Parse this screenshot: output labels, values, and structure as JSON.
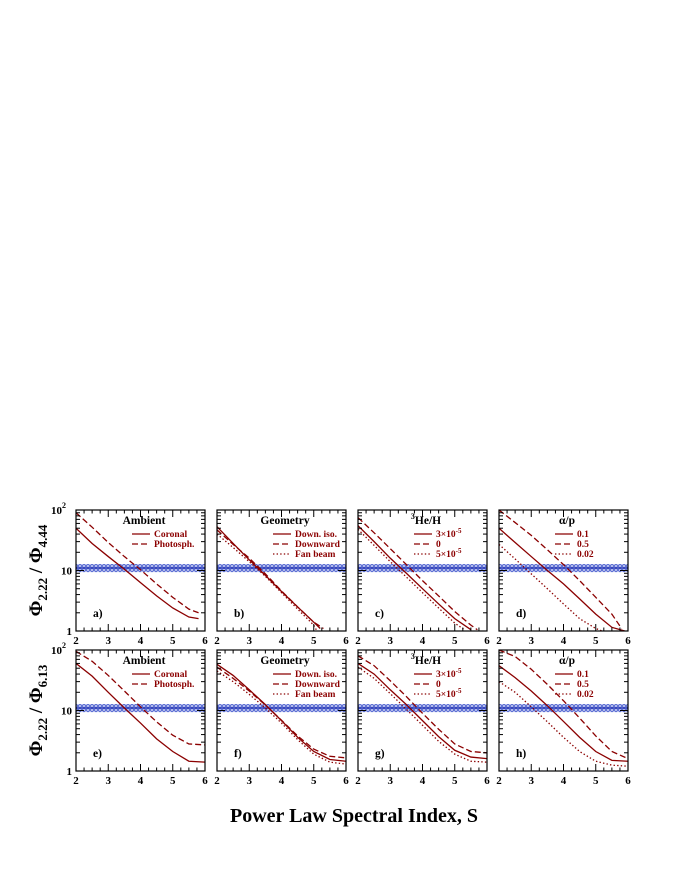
{
  "colors": {
    "curve": "#8b0000",
    "band": "#4a5fd0",
    "band_center": "#1f2fb0",
    "axis": "#000000"
  },
  "chart_data": {
    "type": "line",
    "xlabel": "Power Law Spectral Index, S",
    "x_ticks": [
      "2",
      "3",
      "4",
      "5",
      "6"
    ],
    "xlim": [
      2,
      6
    ],
    "ylim": [
      1,
      100
    ],
    "y_scale": "log",
    "y_ticks": [
      "1",
      "10",
      "10"
    ],
    "y_tick_superscript": "2",
    "observed_band": {
      "center": 11,
      "low": 9.4,
      "high": 12.8
    },
    "rows": [
      {
        "ylabel": {
          "main": "Φ",
          "sub1": "2.22",
          "sep": " / Φ",
          "sub2": "4.44"
        },
        "panels": [
          {
            "letter": "a)",
            "title": {
              "pre": "",
              "sup": "",
              "main": "Ambient"
            },
            "series": [
              {
                "name": "Coronal",
                "style": "solid",
                "x": [
                  2,
                  2.5,
                  3,
                  3.5,
                  4,
                  4.5,
                  5,
                  5.5,
                  5.8
                ],
                "y": [
                  50,
                  28,
                  17,
                  10.5,
                  6.3,
                  3.8,
                  2.4,
                  1.7,
                  1.6
                ]
              },
              {
                "name": "Photosph.",
                "style": "dashed",
                "x": [
                  2,
                  2.5,
                  3,
                  3.5,
                  4,
                  4.5,
                  5,
                  5.5,
                  5.8
                ],
                "y": [
                  90,
                  52,
                  29,
                  17,
                  10.3,
                  6,
                  3.6,
                  2.3,
                  2
                ]
              }
            ]
          },
          {
            "letter": "b)",
            "title": {
              "pre": "",
              "sup": "",
              "main": "Geometry"
            },
            "series": [
              {
                "name": "Down. iso.",
                "style": "solid",
                "x": [
                  2,
                  2.5,
                  3,
                  3.5,
                  4,
                  4.5,
                  5,
                  5.2
                ],
                "y": [
                  53,
                  28,
                  15,
                  8.3,
                  4.5,
                  2.5,
                  1.4,
                  1.1
                ]
              },
              {
                "name": "Downward",
                "style": "dashed",
                "x": [
                  2,
                  2.5,
                  3,
                  3.5,
                  4,
                  4.5,
                  5,
                  5.3
                ],
                "y": [
                  47,
                  27,
                  16,
                  8.8,
                  4.6,
                  2.5,
                  1.4,
                  1.1
                ]
              },
              {
                "name": "Fan beam",
                "style": "dotted",
                "x": [
                  2,
                  2.5,
                  3,
                  3.5,
                  4,
                  4.5,
                  5,
                  5.1
                ],
                "y": [
                  40,
                  24,
                  14,
                  8,
                  4.3,
                  2.3,
                  1.25,
                  1
                ]
              }
            ]
          },
          {
            "letter": "c)",
            "title": {
              "pre": "",
              "sup": "3",
              "main": "He/H"
            },
            "series": [
              {
                "name": "3×10-5",
                "label": {
                  "base": "3×10",
                  "sup": "-5"
                },
                "style": "solid",
                "x": [
                  2,
                  2.5,
                  3,
                  3.5,
                  4,
                  4.5,
                  5,
                  5.5
                ],
                "y": [
                  55,
                  30,
                  16,
                  9,
                  5,
                  2.8,
                  1.6,
                  1.05
                ]
              },
              {
                "name": "0",
                "label": {
                  "base": "0",
                  "sup": ""
                },
                "style": "dashed",
                "x": [
                  2,
                  2.5,
                  3,
                  3.5,
                  4,
                  4.5,
                  5,
                  5.5,
                  5.7
                ],
                "y": [
                  75,
                  42,
                  23,
                  12.5,
                  6.8,
                  3.8,
                  2.1,
                  1.25,
                  1.05
                ]
              },
              {
                "name": "5×10-5",
                "label": {
                  "base": "5×10",
                  "sup": "-5"
                },
                "style": "dotted",
                "x": [
                  2,
                  2.5,
                  3,
                  3.5,
                  4,
                  4.5,
                  5,
                  5.3
                ],
                "y": [
                  48,
                  26,
                  14,
                  7.8,
                  4.3,
                  2.4,
                  1.35,
                  1.05
                ]
              }
            ]
          },
          {
            "letter": "d)",
            "title": {
              "pre": "",
              "sup": "",
              "main": "α/p"
            },
            "series": [
              {
                "name": "0.1",
                "style": "solid",
                "x": [
                  2,
                  2.5,
                  3,
                  3.5,
                  4,
                  4.5,
                  5,
                  5.5,
                  5.9
                ],
                "y": [
                  50,
                  29,
                  17,
                  10,
                  6,
                  3.4,
                  1.9,
                  1.15,
                  1
                ]
              },
              {
                "name": "0.5",
                "style": "dashed",
                "x": [
                  2,
                  2.5,
                  3,
                  3.5,
                  4,
                  4.5,
                  5,
                  5.5,
                  5.8
                ],
                "y": [
                  100,
                  62,
                  38,
                  22,
                  12.5,
                  6.8,
                  3.6,
                  1.9,
                  1.1
                ]
              },
              {
                "name": "0.02",
                "style": "dotted",
                "x": [
                  2,
                  2.5,
                  3,
                  3.5,
                  4,
                  4.5,
                  5,
                  5.2
                ],
                "y": [
                  27,
                  15.5,
                  8.8,
                  5,
                  2.8,
                  1.6,
                  1.1,
                  1
                ]
              }
            ]
          }
        ]
      },
      {
        "ylabel": {
          "main": "Φ",
          "sub1": "2.22",
          "sep": " / Φ",
          "sub2": "6.13"
        },
        "panels": [
          {
            "letter": "e)",
            "title": {
              "pre": "",
              "sup": "",
              "main": "Ambient"
            },
            "series": [
              {
                "name": "Coronal",
                "style": "solid",
                "x": [
                  2,
                  2.5,
                  3,
                  3.5,
                  4,
                  4.5,
                  5,
                  5.5,
                  6
                ],
                "y": [
                  60,
                  37,
                  20,
                  11,
                  6.2,
                  3.4,
                  2.1,
                  1.45,
                  1.4
                ]
              },
              {
                "name": "Photosph.",
                "style": "dashed",
                "x": [
                  2,
                  2.5,
                  3,
                  3.5,
                  4,
                  4.5,
                  5,
                  5.5,
                  6
                ],
                "y": [
                  95,
                  65,
                  38,
                  21,
                  11.5,
                  6.5,
                  3.9,
                  2.8,
                  2.7
                ]
              }
            ]
          },
          {
            "letter": "f)",
            "title": {
              "pre": "",
              "sup": "",
              "main": "Geometry"
            },
            "series": [
              {
                "name": "Down. iso.",
                "style": "solid",
                "x": [
                  2,
                  2.5,
                  3,
                  3.5,
                  4,
                  4.5,
                  5,
                  5.5,
                  6
                ],
                "y": [
                  58,
                  38,
                  22,
                  12.5,
                  6.8,
                  3.6,
                  2.1,
                  1.55,
                  1.45
                ]
              },
              {
                "name": "Downward",
                "style": "dashed",
                "x": [
                  2,
                  2.5,
                  3,
                  3.5,
                  4,
                  4.5,
                  5,
                  5.5,
                  6
                ],
                "y": [
                  52,
                  34,
                  21,
                  12.3,
                  6.9,
                  3.8,
                  2.3,
                  1.75,
                  1.65
                ]
              },
              {
                "name": "Fan beam",
                "style": "dotted",
                "x": [
                  2,
                  2.5,
                  3,
                  3.5,
                  4,
                  4.5,
                  5,
                  5.5,
                  6
                ],
                "y": [
                  45,
                  30,
                  18.5,
                  11,
                  6.2,
                  3.3,
                  1.9,
                  1.4,
                  1.3
                ]
              }
            ]
          },
          {
            "letter": "g)",
            "title": {
              "pre": "",
              "sup": "3",
              "main": "He/H"
            },
            "series": [
              {
                "name": "3×10-5",
                "label": {
                  "base": "3×10",
                  "sup": "-5"
                },
                "style": "solid",
                "x": [
                  2,
                  2.5,
                  3,
                  3.5,
                  4,
                  4.5,
                  5,
                  5.5,
                  6
                ],
                "y": [
                  60,
                  40,
                  22,
                  12.5,
                  6.8,
                  3.7,
                  2.2,
                  1.7,
                  1.6
                ]
              },
              {
                "name": "0",
                "label": {
                  "base": "0",
                  "sup": ""
                },
                "style": "dashed",
                "x": [
                  2,
                  2.5,
                  3,
                  3.5,
                  4,
                  4.5,
                  5,
                  5.5,
                  6
                ],
                "y": [
                  80,
                  55,
                  31,
                  17,
                  9,
                  4.9,
                  2.8,
                  2.1,
                  2
                ]
              },
              {
                "name": "5×10-5",
                "label": {
                  "base": "5×10",
                  "sup": "-5"
                },
                "style": "dotted",
                "x": [
                  2,
                  2.5,
                  3,
                  3.5,
                  4,
                  4.5,
                  5,
                  5.5,
                  6
                ],
                "y": [
                  52,
                  34,
                  19,
                  10.5,
                  5.7,
                  3.1,
                  1.9,
                  1.45,
                  1.4
                ]
              }
            ]
          },
          {
            "letter": "h)",
            "title": {
              "pre": "",
              "sup": "",
              "main": "α/p"
            },
            "series": [
              {
                "name": "0.1",
                "style": "solid",
                "x": [
                  2,
                  2.5,
                  3,
                  3.5,
                  4,
                  4.5,
                  5,
                  5.5,
                  6
                ],
                "y": [
                  55,
                  35,
                  21,
                  12,
                  6.6,
                  3.6,
                  2.1,
                  1.5,
                  1.45
                ]
              },
              {
                "name": "0.5",
                "style": "dashed",
                "x": [
                  2,
                  2.5,
                  3,
                  3.5,
                  4,
                  4.5,
                  5,
                  5.5,
                  6
                ],
                "y": [
                  100,
                  78,
                  48,
                  27,
                  14.5,
                  7.5,
                  3.8,
                  2.1,
                  1.6
                ]
              },
              {
                "name": "0.02",
                "style": "dotted",
                "x": [
                  2,
                  2.5,
                  3,
                  3.5,
                  4,
                  4.5,
                  5,
                  5.5,
                  6
                ],
                "y": [
                  30,
                  20,
                  11.5,
                  6.5,
                  3.6,
                  2.1,
                  1.45,
                  1.25,
                  1.2
                ]
              }
            ]
          }
        ]
      }
    ]
  }
}
